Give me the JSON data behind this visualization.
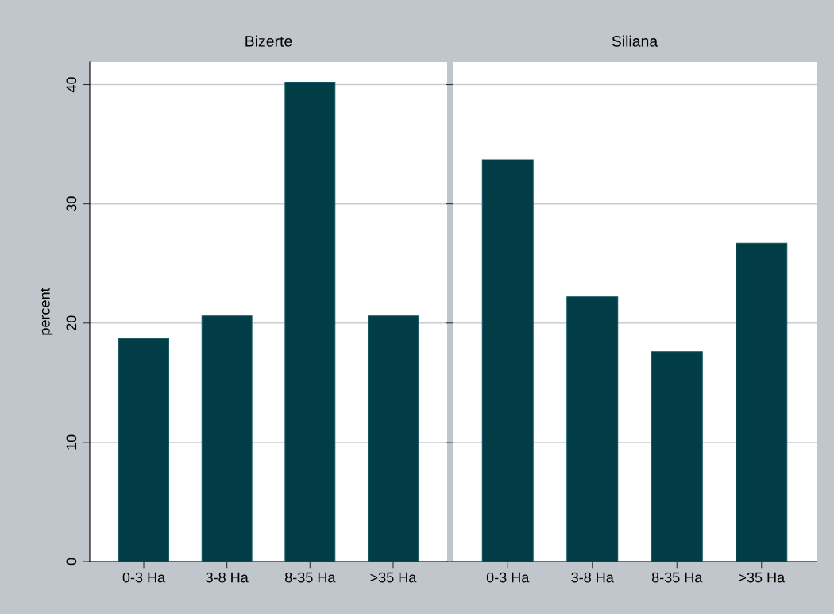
{
  "chart_data": [
    {
      "type": "bar",
      "title": "Bizerte",
      "ylabel": "percent",
      "categories": [
        "0-3 Ha",
        "3-8 Ha",
        "8-35 Ha",
        ">35 Ha"
      ],
      "values": [
        18.7,
        20.6,
        40.2,
        20.6
      ],
      "color": "#023c47",
      "ylim": [
        0,
        41.9
      ],
      "yticks": [
        0,
        10,
        20,
        30,
        40
      ],
      "grid": "y"
    },
    {
      "type": "bar",
      "title": "Siliana",
      "categories": [
        "0-3 Ha",
        "3-8 Ha",
        "8-35 Ha",
        ">35 Ha"
      ],
      "values": [
        33.7,
        22.2,
        17.6,
        26.7
      ],
      "color": "#023c47",
      "ylim": [
        0,
        41.9
      ],
      "yticks": [
        0,
        10,
        20,
        30,
        40
      ],
      "grid": "y",
      "tick_labels": "x"
    }
  ]
}
